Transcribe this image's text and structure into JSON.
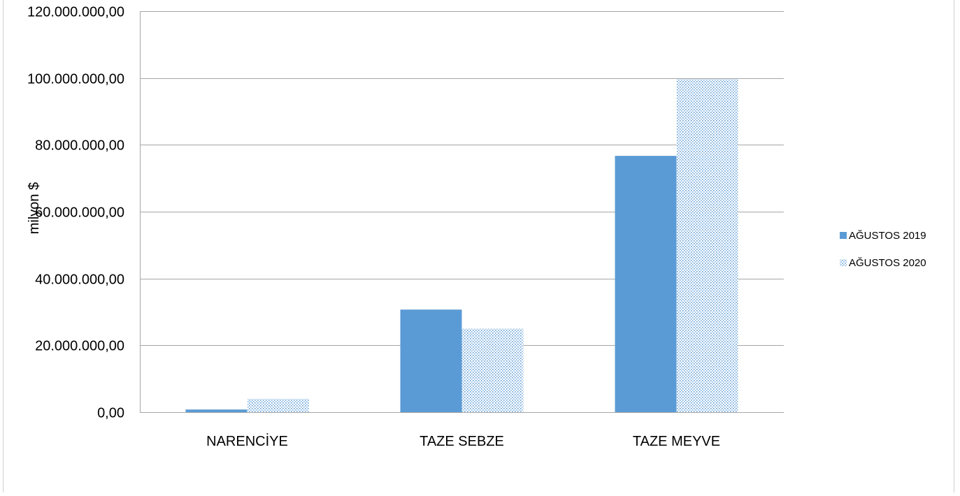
{
  "chart_data": {
    "type": "bar",
    "title": "",
    "xlabel": "",
    "ylabel": "milyon $",
    "ylim": [
      0,
      120000000
    ],
    "ytick_values": [
      0,
      20000000,
      40000000,
      60000000,
      80000000,
      100000000,
      120000000
    ],
    "ytick_labels": [
      "0,00",
      "20.000.000,00",
      "40.000.000,00",
      "60.000.000,00",
      "80.000.000,00",
      "100.000.000,00",
      "120.000.000,00"
    ],
    "categories": [
      "NARENCİYE",
      "TAZE SEBZE",
      "TAZE MEYVE"
    ],
    "series": [
      {
        "name": "AĞUSTOS 2019",
        "values": [
          800000,
          30700000,
          76700000
        ],
        "color": "#5b9bd5",
        "pattern": "solid"
      },
      {
        "name": "AĞUSTOS 2020",
        "values": [
          4000000,
          25000000,
          99700000
        ],
        "color": "#5b9bd5",
        "pattern": "dotted"
      }
    ],
    "grid": true,
    "legend_position": "right"
  }
}
